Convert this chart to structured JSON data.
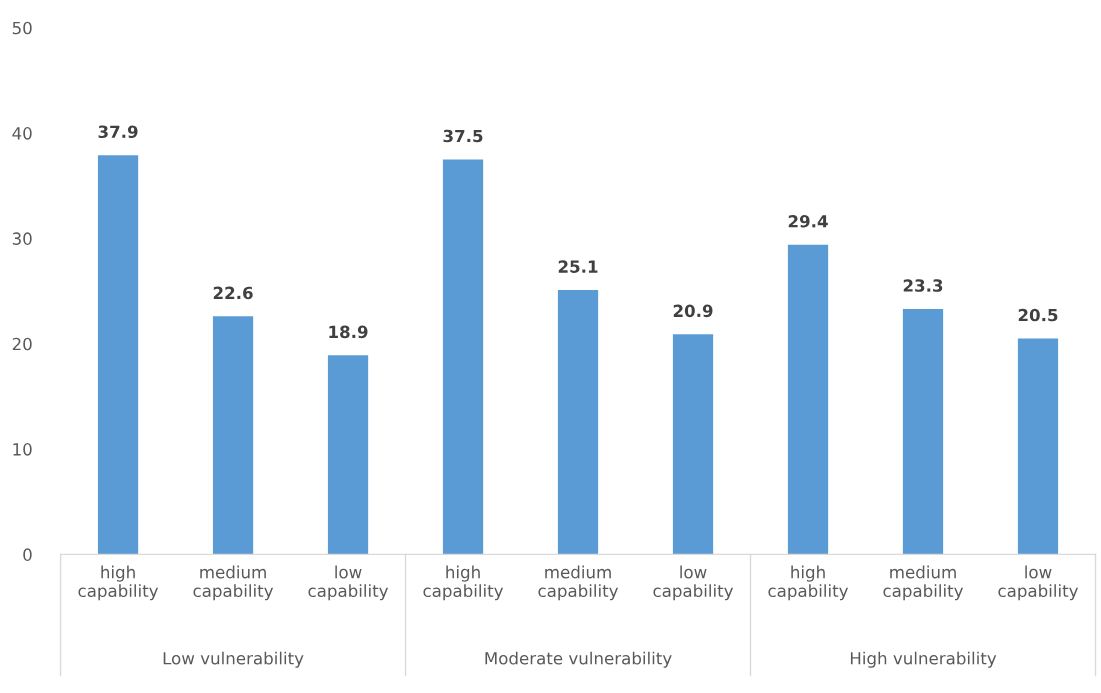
{
  "chart_data": {
    "type": "bar",
    "categories": [
      "high\ncapability",
      "medium\ncapability",
      "low\ncapability",
      "high\ncapability",
      "medium\ncapability",
      "low\ncapability",
      "high\ncapability",
      "medium\ncapability",
      "low\ncapability"
    ],
    "values": [
      37.9,
      22.6,
      18.9,
      37.5,
      25.1,
      20.9,
      29.4,
      23.3,
      20.5
    ],
    "color": "#5b9bd5",
    "ylim": [
      0,
      50
    ],
    "yticks": [
      0,
      10,
      20,
      30,
      40,
      50
    ],
    "data_labels": true,
    "grid": false,
    "legend": false,
    "annotations": [
      "Low vulnerability",
      "Moderate vulnerability",
      "High vulnerability"
    ]
  }
}
